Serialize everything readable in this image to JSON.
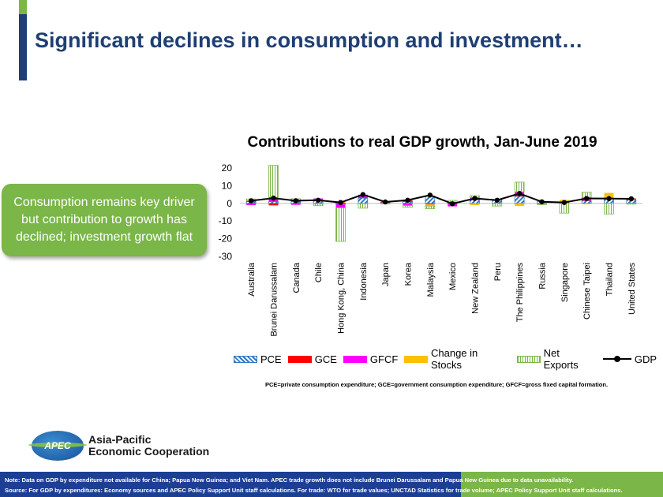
{
  "slide": {
    "title": "Significant declines in consumption and investment…",
    "callout": "Consumption remains key driver but contribution to growth has declined; investment growth flat",
    "footnote": "PCE=private consumption expenditure; GCE=government consumption expenditure; GFCF=gross fixed capital formation.",
    "logo": {
      "globe_text": "APEC",
      "line1": "Asia-Pacific",
      "line2": "Economic Cooperation"
    },
    "note": "Note: Data on GDP by expenditure not available for China; Papua New Guinea; and Viet Nam. APEC  trade growth does not include Brunei Darussalam and Papua New Guinea due to data unavailability.",
    "source": "Source: For  GDP by expenditures: Economy sources and APEC Policy Support Unit staff calculations. For trade: WTO for trade values; UNCTAD Statistics for trade volume; APEC Policy Support Unit staff calculations."
  },
  "colors": {
    "title": "#1f3f73",
    "accent_green": "#7ab648",
    "pce": "#2f78c4",
    "gce": "#ff0000",
    "gfcf": "#ff00ff",
    "cis": "#ffc000",
    "nx": "#7ab648",
    "gdp": "#000000"
  },
  "chart_data": {
    "type": "bar",
    "stacked": true,
    "title": "Contributions to real GDP growth, Jan-June 2019",
    "xlabel": "",
    "ylabel": "",
    "ylim": [
      -30,
      20
    ],
    "yticks": [
      20,
      10,
      0,
      -10,
      -20,
      -30
    ],
    "grid": false,
    "legend_position": "bottom",
    "categories": [
      "Australia",
      "Brunei Darussalam",
      "Canada",
      "Chile",
      "Hong Kong, China",
      "Indonesia",
      "Japan",
      "Korea",
      "Malaysia",
      "Mexico",
      "New Zealand",
      "Peru",
      "The Philippines",
      "Russia",
      "Singapore",
      "Chinese Taipei",
      "Thailand",
      "United States"
    ],
    "series": [
      {
        "name": "PCE",
        "key": "pce",
        "values": [
          1.0,
          1.0,
          1.0,
          1.5,
          -0.5,
          3.0,
          0.5,
          1.0,
          4.0,
          0.5,
          2.0,
          2.0,
          4.0,
          1.0,
          0.5,
          1.5,
          2.5,
          2.0
        ]
      },
      {
        "name": "GCE",
        "key": "gce",
        "values": [
          0.5,
          -1.0,
          0.5,
          0.3,
          0.5,
          0.4,
          0.3,
          0.7,
          0.3,
          -0.2,
          0.5,
          0.2,
          1.0,
          0.0,
          0.5,
          0.3,
          0.4,
          0.3
        ]
      },
      {
        "name": "GFCF",
        "key": "gfcf",
        "values": [
          -1.0,
          2.5,
          -0.8,
          1.0,
          -2.0,
          1.5,
          0.2,
          -1.2,
          -0.5,
          -1.5,
          0.8,
          0.1,
          1.5,
          -0.2,
          0.0,
          1.5,
          0.5,
          0.5
        ]
      },
      {
        "name": "Change in Stocks",
        "key": "cis",
        "values": [
          0.0,
          -0.5,
          0.3,
          -0.3,
          0.5,
          -0.2,
          0.1,
          0.4,
          -1.0,
          0.2,
          -1.0,
          -0.2,
          -1.5,
          0.0,
          1.0,
          -0.5,
          2.5,
          0.2
        ]
      },
      {
        "name": "Net Exports",
        "key": "nx",
        "values": [
          1.0,
          18.0,
          0.8,
          -1.0,
          -19.0,
          -2.5,
          -0.3,
          -1.0,
          -1.5,
          1.0,
          1.0,
          -1.3,
          5.5,
          -0.5,
          -5.5,
          3.0,
          -6.0,
          -0.4
        ]
      }
    ],
    "gdp": {
      "name": "GDP",
      "values": [
        1.5,
        3.0,
        1.5,
        1.8,
        0.5,
        5.0,
        0.8,
        1.8,
        4.7,
        -0.2,
        2.8,
        1.8,
        5.6,
        0.9,
        0.5,
        2.8,
        2.7,
        2.6
      ]
    }
  }
}
